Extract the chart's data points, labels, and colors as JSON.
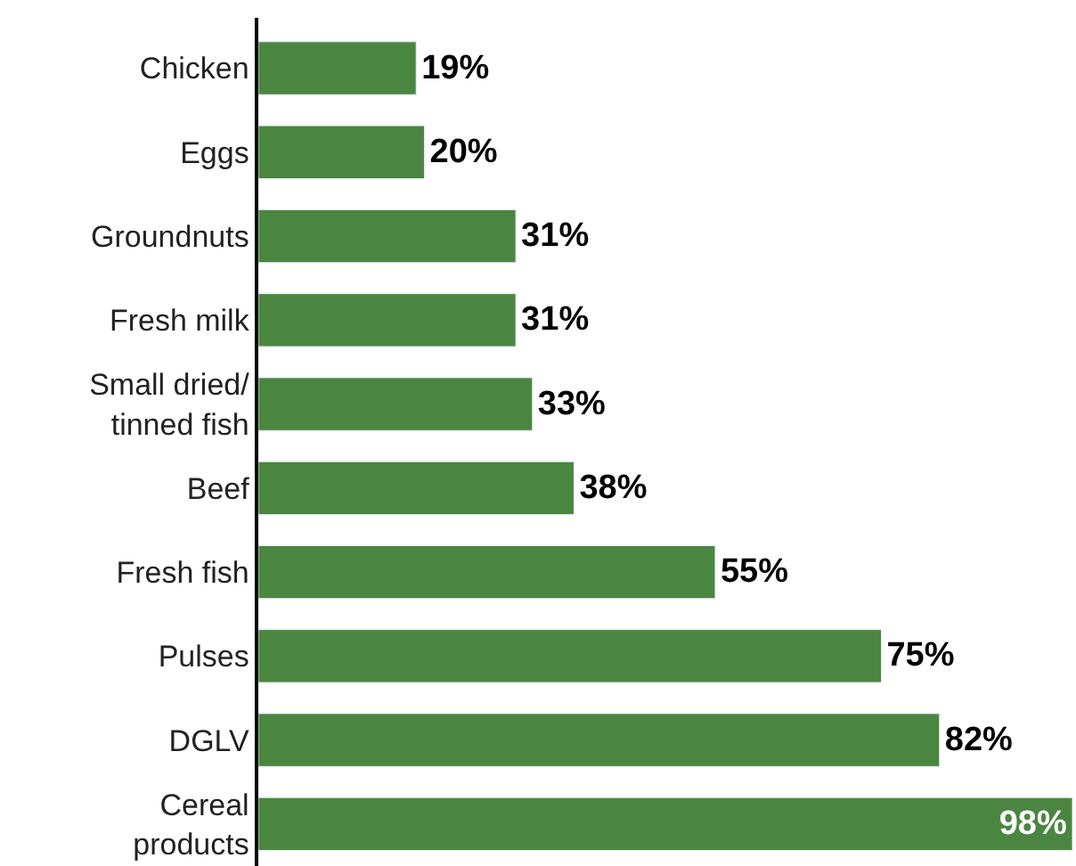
{
  "chart_data": {
    "type": "bar",
    "orientation": "horizontal",
    "categories": [
      "Chicken",
      "Eggs",
      "Groundnuts",
      "Fresh milk",
      "Small dried/\ntinned fish",
      "Beef",
      "Fresh fish",
      "Pulses",
      "DGLV",
      "Cereal\nproducts"
    ],
    "values": [
      19,
      20,
      31,
      31,
      33,
      38,
      55,
      75,
      82,
      98
    ],
    "value_labels": [
      "19%",
      "20%",
      "31%",
      "31%",
      "33%",
      "38%",
      "55%",
      "75%",
      "82%",
      "98%"
    ],
    "color": "#4a8640"
  }
}
